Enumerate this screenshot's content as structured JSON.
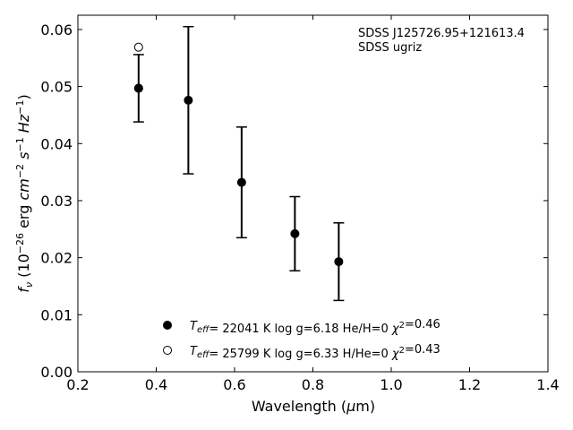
{
  "chart_data": {
    "type": "scatter",
    "annotation": [
      "SDSS J125726.95+121613.4",
      "SDSS ugriz"
    ],
    "xlabel": "Wavelength (μm)",
    "ylabel": "f_ν (10^-26 erg cm^-2 s^-1 Hz^-1)",
    "xlim": [
      0.2,
      1.4
    ],
    "ylim": [
      0.0,
      0.0625
    ],
    "xticks": [
      0.2,
      0.4,
      0.6,
      0.8,
      1.0,
      1.2,
      1.4
    ],
    "xtick_labels": [
      "0.2",
      "0.4",
      "0.6",
      "0.8",
      "1.0",
      "1.2",
      "1.4"
    ],
    "yticks": [
      0.0,
      0.01,
      0.02,
      0.03,
      0.04,
      0.05,
      0.06
    ],
    "ytick_labels": [
      "0.00",
      "0.01",
      "0.02",
      "0.03",
      "0.04",
      "0.05",
      "0.06"
    ],
    "grid": false,
    "legend_position": "bottom-center",
    "observed": {
      "x": [
        0.355,
        0.482,
        0.618,
        0.754,
        0.866
      ],
      "y": [
        0.0497,
        0.0476,
        0.0332,
        0.0242,
        0.0193
      ],
      "err": [
        0.0059,
        0.0129,
        0.0097,
        0.0065,
        0.0068
      ]
    },
    "series": [
      {
        "marker": "filled",
        "legend_label": "T_eff= 22041 K  log g=6.18  He/H=0  χ²=0.46",
        "x": [
          0.355
        ],
        "y": [
          0.0497
        ]
      },
      {
        "marker": "open",
        "legend_label": "T_eff= 25799 K  log g=6.33  H/He=0  χ²=0.43",
        "x": [
          0.355
        ],
        "y": [
          0.0569
        ]
      }
    ]
  }
}
